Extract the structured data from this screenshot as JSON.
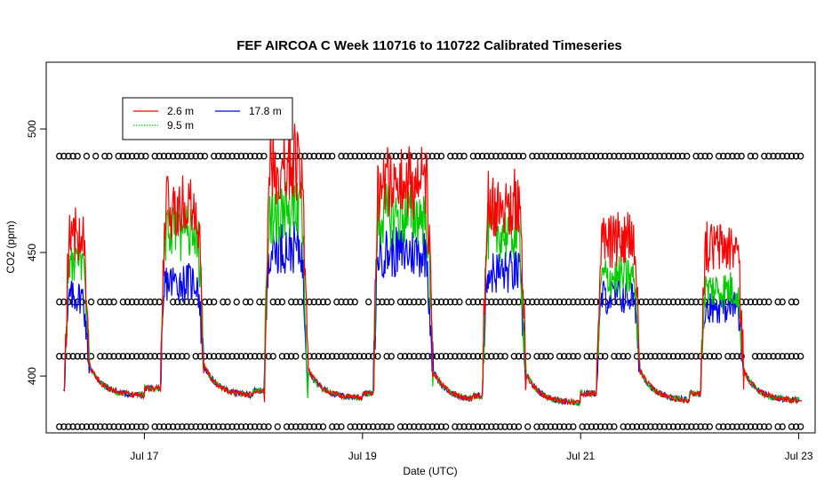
{
  "chart_data": {
    "type": "line",
    "title": "FEF AIRCOA C  Week 110716 to 110722  Calibrated Timeseries",
    "xlabel": "Date (UTC)",
    "ylabel": "CO2 (ppm)",
    "xlim_days": [
      16.1,
      23.15
    ],
    "ylim": [
      377,
      527
    ],
    "x_ticks": [
      {
        "value": 17,
        "label": "Jul 17"
      },
      {
        "value": 19,
        "label": "Jul 19"
      },
      {
        "value": 21,
        "label": "Jul 21"
      },
      {
        "value": 23,
        "label": "Jul 23"
      }
    ],
    "y_ticks": [
      {
        "value": 400,
        "label": "400"
      },
      {
        "value": 450,
        "label": "450"
      },
      {
        "value": 500,
        "label": "500"
      }
    ],
    "legend": {
      "position": "top-left",
      "entries": [
        {
          "name": "2.6 m",
          "color": "#ff0000",
          "style": "solid"
        },
        {
          "name": "9.5 m",
          "color": "#00cc00",
          "style": "dotted"
        },
        {
          "name": "17.8 m",
          "color": "#0000ff",
          "style": "solid"
        }
      ]
    },
    "series": [
      {
        "name": "17.8 m",
        "color": "#0000ff",
        "days": [
          {
            "start": 16.27,
            "end": 16.5,
            "peak": 432,
            "night": 392
          },
          {
            "start": 17.15,
            "end": 17.55,
            "peak": 438,
            "night": 392
          },
          {
            "start": 18.1,
            "end": 18.5,
            "peak": 452,
            "night": 391
          },
          {
            "start": 19.1,
            "end": 19.65,
            "peak": 450,
            "night": 390
          },
          {
            "start": 20.1,
            "end": 20.5,
            "peak": 442,
            "night": 389
          },
          {
            "start": 21.15,
            "end": 21.55,
            "peak": 432,
            "night": 390
          },
          {
            "start": 22.1,
            "end": 22.5,
            "peak": 428,
            "night": 390
          }
        ]
      },
      {
        "name": "9.5 m",
        "color": "#00cc00",
        "days": [
          {
            "start": 16.27,
            "end": 16.5,
            "peak": 445,
            "night": 392
          },
          {
            "start": 17.15,
            "end": 17.55,
            "peak": 458,
            "night": 392
          },
          {
            "start": 18.1,
            "end": 18.5,
            "peak": 466,
            "night": 391
          },
          {
            "start": 19.1,
            "end": 19.65,
            "peak": 465,
            "night": 390
          },
          {
            "start": 20.1,
            "end": 20.5,
            "peak": 458,
            "night": 389
          },
          {
            "start": 21.15,
            "end": 21.55,
            "peak": 440,
            "night": 390
          },
          {
            "start": 22.1,
            "end": 22.5,
            "peak": 435,
            "night": 390
          }
        ]
      },
      {
        "name": "2.6 m",
        "color": "#ff0000",
        "days": [
          {
            "start": 16.27,
            "end": 16.5,
            "peak": 458,
            "night": 392
          },
          {
            "start": 17.15,
            "end": 17.55,
            "peak": 468,
            "night": 392
          },
          {
            "start": 18.1,
            "end": 18.5,
            "peak": 486,
            "night": 391
          },
          {
            "start": 19.1,
            "end": 19.65,
            "peak": 478,
            "night": 390
          },
          {
            "start": 20.1,
            "end": 20.5,
            "peak": 470,
            "night": 389
          },
          {
            "start": 21.15,
            "end": 21.55,
            "peak": 455,
            "night": 390
          },
          {
            "start": 22.1,
            "end": 22.5,
            "peak": 452,
            "night": 390
          }
        ]
      }
    ],
    "calibration_points": {
      "marker": "open circle",
      "levels": [
        379.5,
        408,
        430,
        489
      ],
      "x_start": 16.22,
      "x_end": 23.02,
      "spacing_days": 0.0417
    }
  }
}
